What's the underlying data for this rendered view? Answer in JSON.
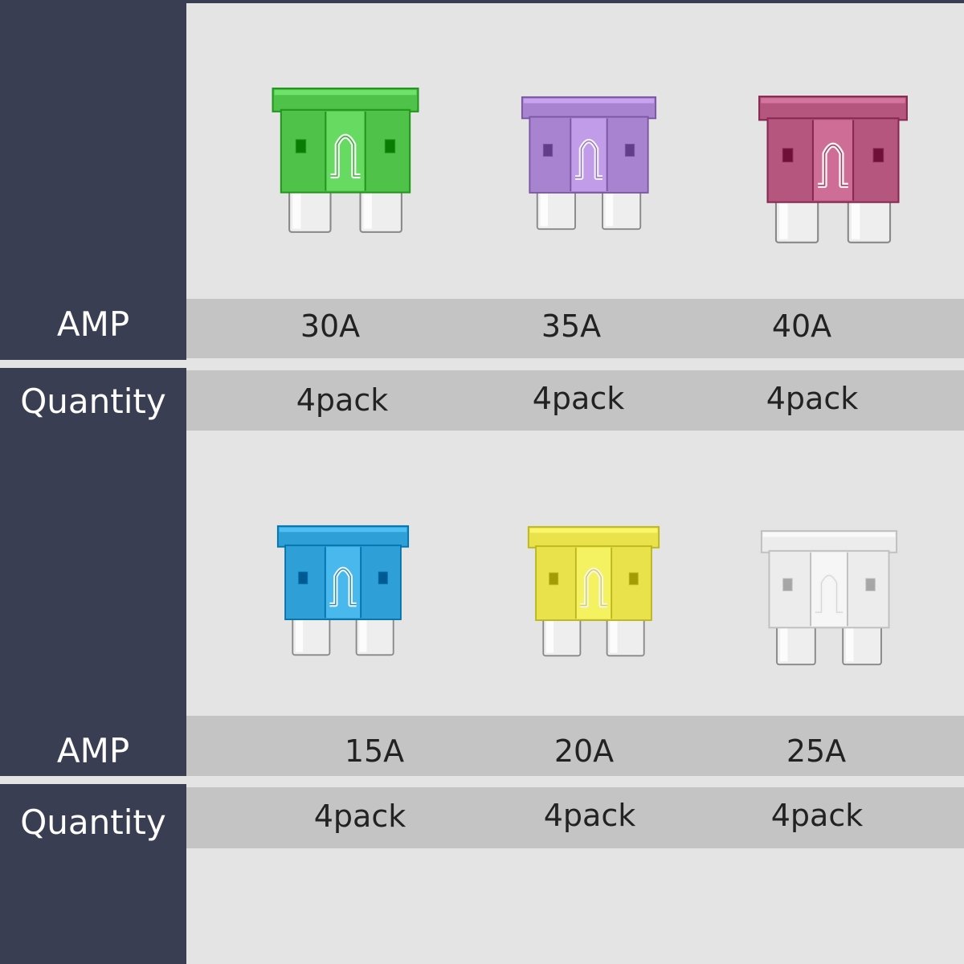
{
  "rows": [
    {
      "amp_label": "AMP",
      "quantity_label": "Quantity",
      "fuses": [
        {
          "amp": "30A",
          "quantity": "4pack",
          "color": "#4fc24a"
        },
        {
          "amp": "35A",
          "quantity": "4pack",
          "color": "#a884d0"
        },
        {
          "amp": "40A",
          "quantity": "4pack",
          "color": "#b5567e"
        }
      ]
    },
    {
      "amp_label": "AMP",
      "quantity_label": "Quantity",
      "fuses": [
        {
          "amp": "15A",
          "quantity": "4pack",
          "color": "#2f9fd8"
        },
        {
          "amp": "20A",
          "quantity": "4pack",
          "color": "#e9e24a"
        },
        {
          "amp": "25A",
          "quantity": "4pack",
          "color": "#ececec"
        }
      ]
    }
  ]
}
